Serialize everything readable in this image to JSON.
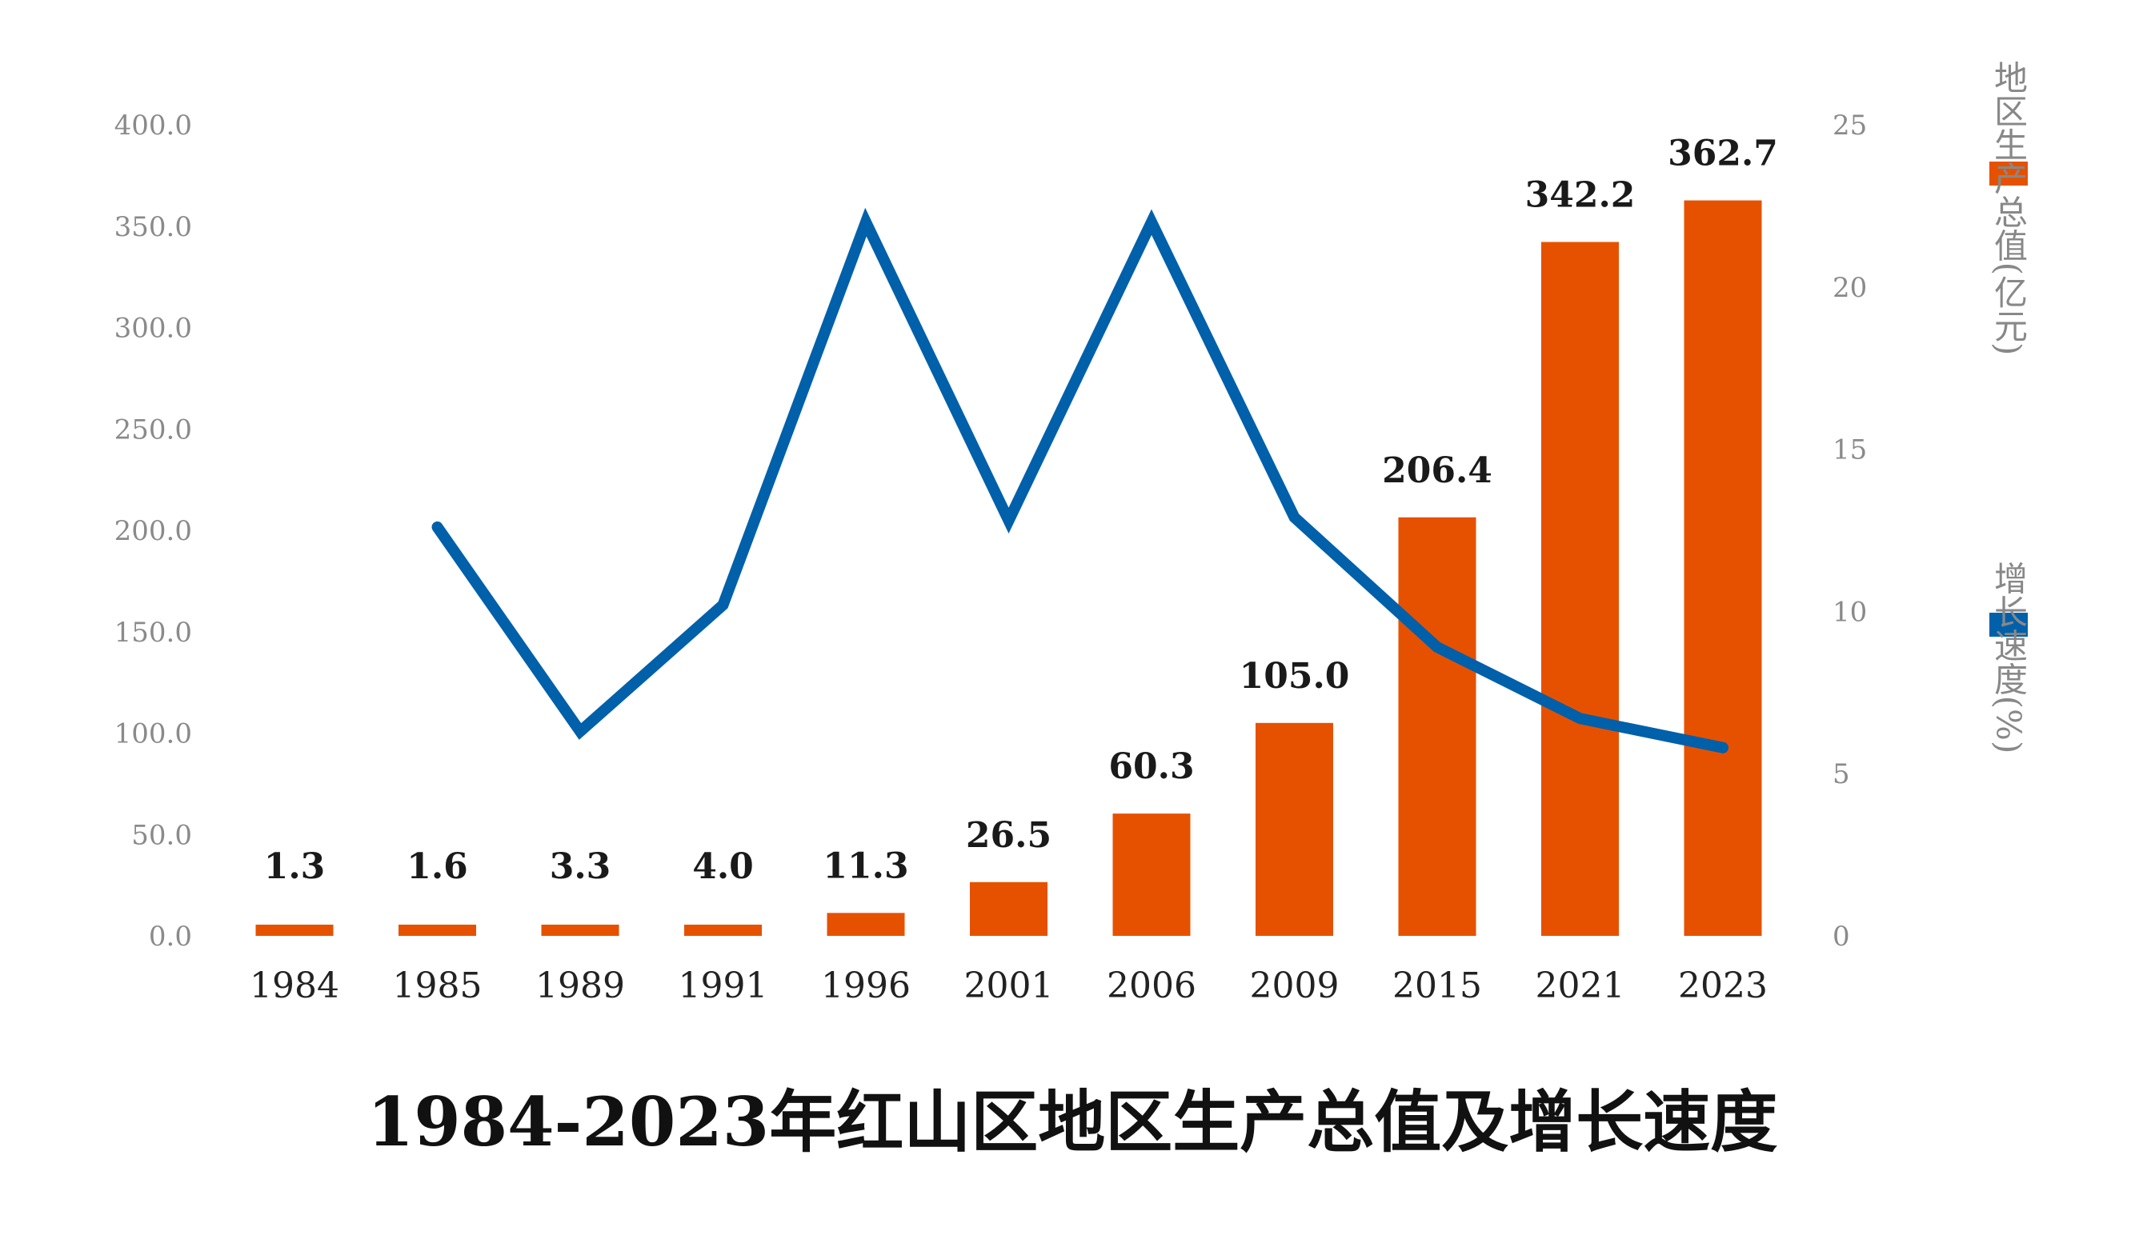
{
  "chart_data": {
    "type": "bar",
    "title": "1984-2023年红山区地区生产总值及增长速度",
    "categories": [
      "1984",
      "1985",
      "1989",
      "1991",
      "1996",
      "2001",
      "2006",
      "2009",
      "2015",
      "2021",
      "2023"
    ],
    "series": [
      {
        "name": "地区生产总值(亿元)",
        "type": "bar",
        "axis": "left",
        "color": "#E65100",
        "values": [
          1.3,
          1.6,
          3.3,
          4.0,
          11.3,
          26.5,
          60.3,
          105.0,
          206.4,
          342.2,
          362.7
        ],
        "labels": [
          "1.3",
          "1.6",
          "3.3",
          "4.0",
          "11.3",
          "26.5",
          "60.3",
          "105.0",
          "206.4",
          "342.2",
          "362.7"
        ]
      },
      {
        "name": "增长速度(%)",
        "type": "line",
        "axis": "right",
        "color": "#0060AA",
        "values": [
          null,
          12.6,
          6.3,
          10.2,
          22.0,
          12.8,
          22.0,
          12.9,
          8.9,
          6.7,
          5.8
        ]
      }
    ],
    "y_left": {
      "ylim": [
        0,
        400
      ],
      "ticks": [
        "0.0",
        "50.0",
        "100.0",
        "150.0",
        "200.0",
        "250.0",
        "300.0",
        "350.0",
        "400.0"
      ]
    },
    "y_right": {
      "ylim": [
        0,
        25
      ],
      "ticks": [
        "0",
        "5",
        "10",
        "15",
        "20",
        "25"
      ]
    },
    "legend": {
      "position": "right",
      "items": [
        {
          "label": "地区生产总值(亿元)",
          "color": "#E65100"
        },
        {
          "label": "增长速度(%)",
          "color": "#0060AA"
        }
      ]
    },
    "grid": false
  }
}
